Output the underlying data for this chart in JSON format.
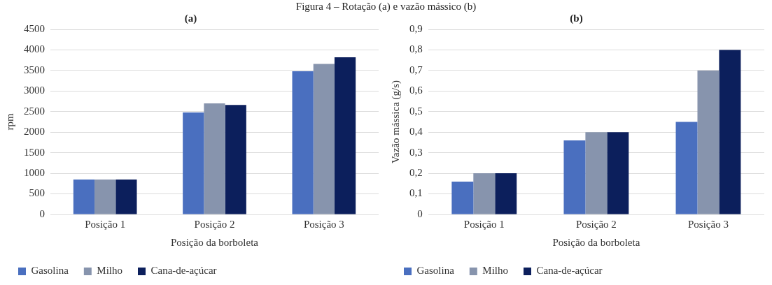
{
  "chart_data": [
    {
      "type": "bar",
      "title": "(a)",
      "annotations": [
        "Figura 4 – Rotação (a) e vazão mássico (b)"
      ],
      "categories": [
        "Posição 1",
        "Posição 2",
        "Posição 3"
      ],
      "xlabel": "Posição da borboleta",
      "ylabel": "rpm",
      "ylim": [
        0,
        4500
      ],
      "yticks": [
        0,
        500,
        1000,
        1500,
        2000,
        2500,
        3000,
        3500,
        4000,
        4500
      ],
      "grid": "y",
      "legend": "bottom",
      "series": [
        {
          "name": "Gasolina",
          "color": "#4a6fbf",
          "values": [
            850,
            2480,
            3480
          ]
        },
        {
          "name": "Milho",
          "color": "#8794ad",
          "values": [
            850,
            2700,
            3660
          ]
        },
        {
          "name": "Cana-de-açúcar",
          "color": "#0c1f5c",
          "values": [
            850,
            2660,
            3820
          ]
        }
      ]
    },
    {
      "type": "bar",
      "title": "(b)",
      "categories": [
        "Posição 1",
        "Posição 2",
        "Posição 3"
      ],
      "xlabel": "Posição da borboleta",
      "ylabel": "Vazão mássica (g/s)",
      "ylim": [
        0,
        0.9
      ],
      "yticks": [
        {
          "value": 0,
          "label": "0"
        },
        {
          "value": 0.1,
          "label": "0,1"
        },
        {
          "value": 0.2,
          "label": "0,2"
        },
        {
          "value": 0.3,
          "label": "0,3"
        },
        {
          "value": 0.4,
          "label": "0,4"
        },
        {
          "value": 0.5,
          "label": "0,5"
        },
        {
          "value": 0.6,
          "label": "0,6"
        },
        {
          "value": 0.7,
          "label": "0,7"
        },
        {
          "value": 0.8,
          "label": "0,8"
        },
        {
          "value": 0.9,
          "label": "0,9"
        }
      ],
      "grid": "y",
      "legend": "bottom",
      "series": [
        {
          "name": "Gasolina",
          "color": "#4a6fbf",
          "values": [
            0.16,
            0.36,
            0.45
          ]
        },
        {
          "name": "Milho",
          "color": "#8794ad",
          "values": [
            0.2,
            0.4,
            0.7
          ]
        },
        {
          "name": "Cana-de-açúcar",
          "color": "#0c1f5c",
          "values": [
            0.2,
            0.4,
            0.8
          ]
        }
      ]
    }
  ]
}
